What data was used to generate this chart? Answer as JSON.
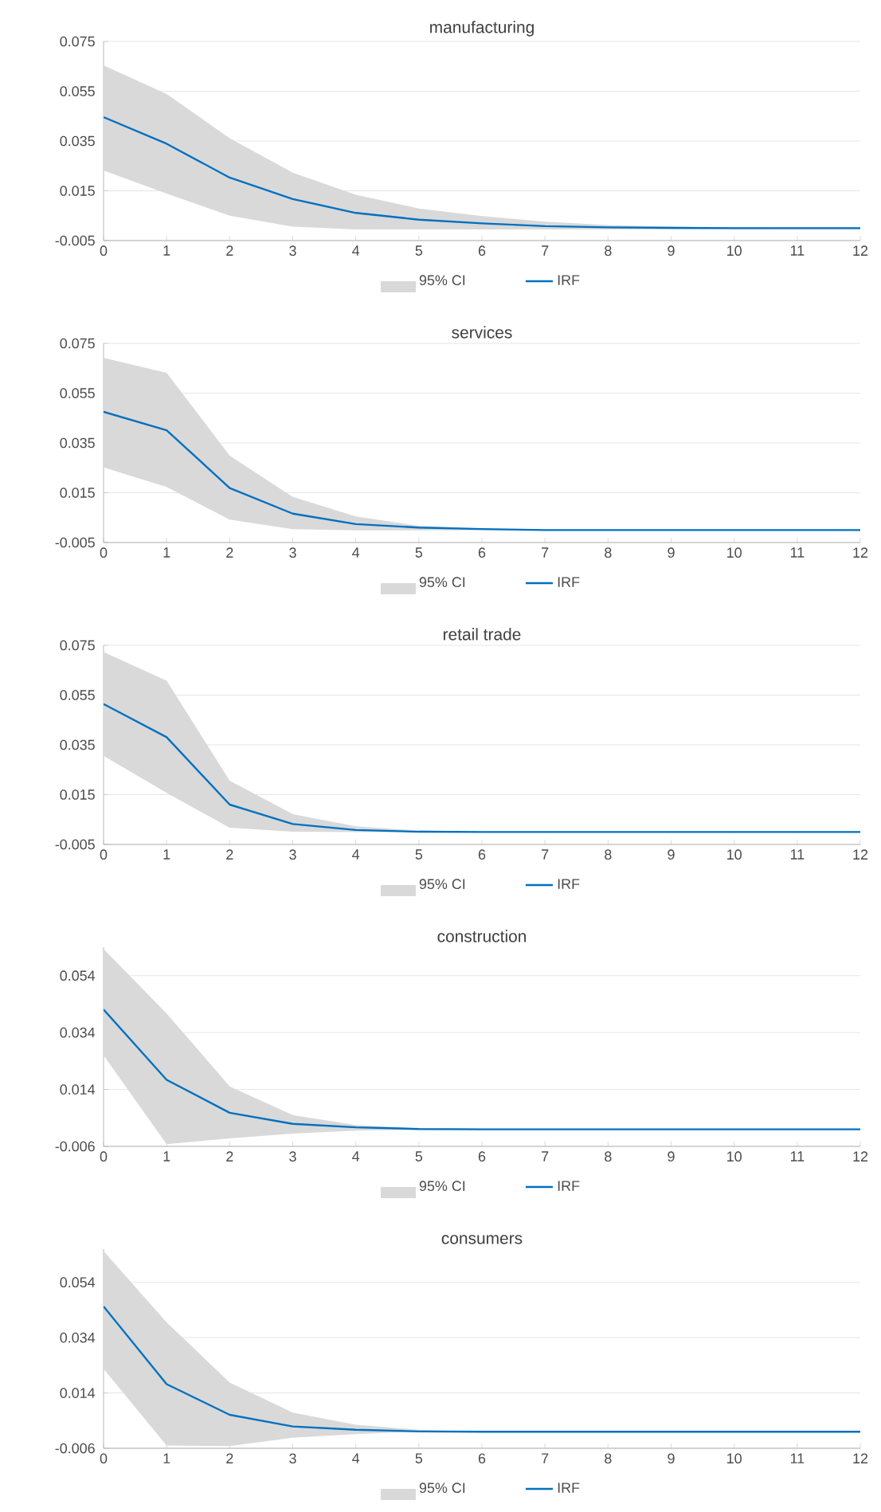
{
  "chart_data": [
    {
      "type": "line",
      "title": "manufacturing",
      "annotations": [
        "95% CI"
      ],
      "x": [
        0,
        1,
        2,
        3,
        4,
        5,
        6,
        7,
        8,
        9,
        10,
        11,
        12
      ],
      "xlim": [
        0,
        12
      ],
      "xticks": [
        0,
        1,
        2,
        3,
        4,
        5,
        6,
        7,
        8,
        9,
        10,
        11,
        12
      ],
      "ylim": [
        -0.005,
        0.075
      ],
      "yticks": [
        -0.005,
        0.015,
        0.035,
        0.055,
        0.075
      ],
      "grid": "y",
      "legend": "bottom",
      "series": [
        {
          "name": "IRF",
          "color": "#0070c0",
          "values": [
            0.0446,
            0.0339,
            0.0203,
            0.0117,
            0.0061,
            0.0034,
            0.0019,
            0.0008,
            0.0003,
            0.0001,
            0,
            0,
            0
          ],
          "lower": [
            0.0232,
            0.0139,
            0.005,
            0.0006,
            -0.0005,
            -0.0005,
            -0.0005,
            -0.0005,
            -0.0005,
            -0.0005,
            -0.0005,
            -0.0005,
            -0.0005
          ],
          "upper": [
            0.0654,
            0.0539,
            0.0361,
            0.0223,
            0.0134,
            0.0079,
            0.0048,
            0.0026,
            0.0012,
            0.0006,
            0.0002,
            0.0001,
            0.0001
          ]
        }
      ]
    },
    {
      "type": "line",
      "title": "services",
      "annotations": [
        "95% CI"
      ],
      "x": [
        0,
        1,
        2,
        3,
        4,
        5,
        6,
        7,
        8,
        9,
        10,
        11,
        12
      ],
      "xlim": [
        0,
        12
      ],
      "xticks": [
        0,
        1,
        2,
        3,
        4,
        5,
        6,
        7,
        8,
        9,
        10,
        11,
        12
      ],
      "ylim": [
        -0.005,
        0.075
      ],
      "yticks": [
        -0.005,
        0.015,
        0.035,
        0.055,
        0.075
      ],
      "grid": "y",
      "legend": "bottom",
      "series": [
        {
          "name": "IRF",
          "color": "#0070c0",
          "values": [
            0.0475,
            0.0401,
            0.0169,
            0.0066,
            0.0024,
            0.001,
            0.0004,
            0,
            0,
            0,
            0,
            0,
            0
          ],
          "lower": [
            0.0252,
            0.0173,
            0.0042,
            0.0004,
            -0.0001,
            -0.0001,
            0,
            0,
            0,
            0,
            0,
            0,
            0
          ],
          "upper": [
            0.0692,
            0.0632,
            0.0299,
            0.0133,
            0.0055,
            0.0017,
            0.0006,
            0.0001,
            0,
            0,
            0,
            0,
            0
          ]
        }
      ]
    },
    {
      "type": "line",
      "title": "retail trade",
      "annotations": [
        "95% CI"
      ],
      "x": [
        0,
        1,
        2,
        3,
        4,
        5,
        6,
        7,
        8,
        9,
        10,
        11,
        12
      ],
      "xlim": [
        0,
        12
      ],
      "xticks": [
        0,
        1,
        2,
        3,
        4,
        5,
        6,
        7,
        8,
        9,
        10,
        11,
        12
      ],
      "ylim": [
        -0.005,
        0.075
      ],
      "yticks": [
        -0.005,
        0.015,
        0.035,
        0.055,
        0.075
      ],
      "grid": "y",
      "legend": "bottom",
      "series": [
        {
          "name": "IRF",
          "color": "#0070c0",
          "values": [
            0.0514,
            0.0381,
            0.011,
            0.0032,
            0.0008,
            0.0001,
            0,
            0,
            0,
            0,
            0,
            0,
            0
          ],
          "lower": [
            0.0306,
            0.0157,
            0.0017,
            0.0001,
            0,
            0,
            0,
            0,
            0,
            0,
            0,
            0,
            0
          ],
          "upper": [
            0.0723,
            0.0608,
            0.0206,
            0.0072,
            0.0023,
            0.0006,
            0.0001,
            0,
            0,
            0,
            0,
            0,
            0
          ]
        }
      ]
    },
    {
      "type": "line",
      "title": "construction",
      "annotations": [
        "95% CI"
      ],
      "x": [
        0,
        1,
        2,
        3,
        4,
        5,
        6,
        7,
        8,
        9,
        10,
        11,
        12
      ],
      "xlim": [
        0,
        12
      ],
      "xticks": [
        0,
        1,
        2,
        3,
        4,
        5,
        6,
        7,
        8,
        9,
        10,
        11,
        12
      ],
      "ylim": [
        -0.006,
        0.064
      ],
      "yticks": [
        -0.006,
        0.014,
        0.034,
        0.054
      ],
      "grid": "y",
      "legend": "bottom",
      "series": [
        {
          "name": "IRF",
          "color": "#0070c0",
          "values": [
            0.0421,
            0.0174,
            0.0058,
            0.0019,
            0.0007,
            0.0001,
            0,
            0,
            0,
            0,
            0,
            0,
            0
          ],
          "lower": [
            0.026,
            -0.0052,
            -0.0032,
            -0.0015,
            -0.0005,
            -0.0001,
            0,
            0,
            0,
            0,
            0,
            0,
            0
          ],
          "upper": [
            0.0634,
            0.0407,
            0.0151,
            0.005,
            0.0015,
            0.0003,
            0,
            0,
            0,
            0,
            0,
            0,
            0
          ]
        }
      ]
    },
    {
      "type": "line",
      "title": "consumers",
      "annotations": [
        "95% CI"
      ],
      "x": [
        0,
        1,
        2,
        3,
        4,
        5,
        6,
        7,
        8,
        9,
        10,
        11,
        12
      ],
      "xlim": [
        0,
        12
      ],
      "xticks": [
        0,
        1,
        2,
        3,
        4,
        5,
        6,
        7,
        8,
        9,
        10,
        11,
        12
      ],
      "ylim": [
        -0.006,
        0.066
      ],
      "yticks": [
        -0.006,
        0.014,
        0.034,
        0.054
      ],
      "grid": "y",
      "legend": "bottom",
      "series": [
        {
          "name": "IRF",
          "color": "#0070c0",
          "values": [
            0.0453,
            0.0172,
            0.0061,
            0.0019,
            0.0007,
            0.0001,
            0,
            0,
            0,
            0,
            0,
            0,
            0
          ],
          "lower": [
            0.0227,
            -0.005,
            -0.0052,
            -0.0022,
            -0.0009,
            0,
            0,
            0,
            0,
            0,
            0,
            0,
            0
          ],
          "upper": [
            0.0653,
            0.0395,
            0.0178,
            0.0069,
            0.0025,
            0.0007,
            0,
            0,
            0,
            0,
            0,
            0,
            0
          ]
        }
      ]
    }
  ]
}
